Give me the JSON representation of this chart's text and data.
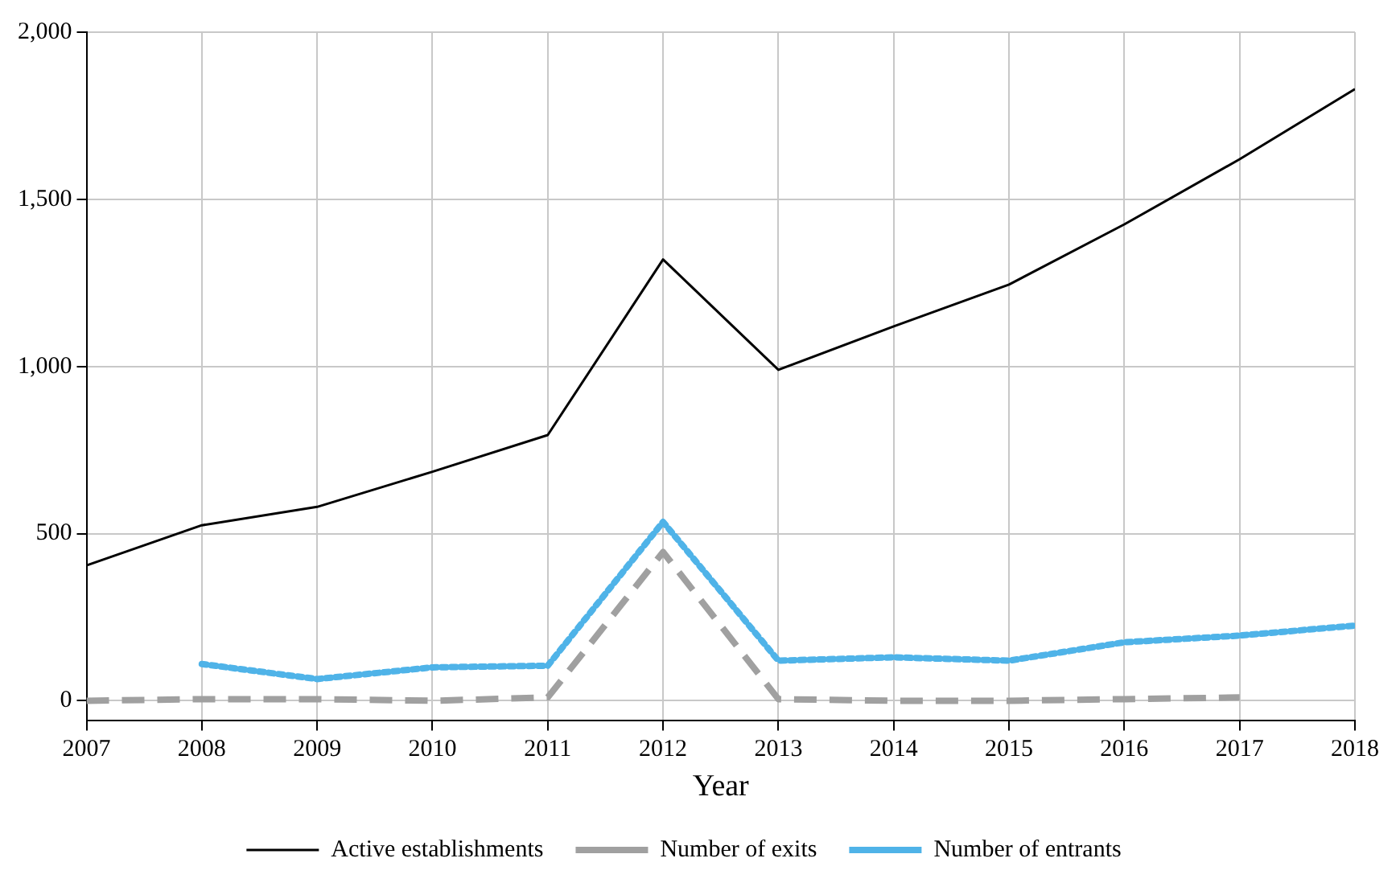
{
  "chart_data": {
    "type": "line",
    "xlabel": "Year",
    "x": [
      2007,
      2008,
      2009,
      2010,
      2011,
      2012,
      2013,
      2014,
      2015,
      2016,
      2017,
      2018
    ],
    "series": [
      {
        "name": "Active establishments",
        "color": "#000000",
        "line_style": "solid",
        "values": [
          405,
          525,
          580,
          685,
          795,
          1320,
          990,
          1120,
          1245,
          1425,
          1620,
          1830
        ]
      },
      {
        "name": "Number of exits",
        "color": "#a0a0a0",
        "line_style": "dashed",
        "values": [
          0,
          5,
          5,
          0,
          10,
          445,
          5,
          0,
          0,
          5,
          10,
          null
        ]
      },
      {
        "name": "Number of entrants",
        "color": "#4fb3e8",
        "line_style": "dotted",
        "values": [
          null,
          110,
          65,
          100,
          105,
          535,
          120,
          130,
          120,
          175,
          195,
          225
        ]
      }
    ],
    "xlim": [
      2007,
      2018
    ],
    "xticks": [
      2007,
      2008,
      2009,
      2010,
      2011,
      2012,
      2013,
      2014,
      2015,
      2016,
      2017,
      2018
    ],
    "ylim": [
      -60,
      2000
    ],
    "yticks": [
      0,
      {
        "value": 500,
        "label": "500"
      },
      {
        "value": 1000,
        "label": "1,000"
      },
      {
        "value": 1500,
        "label": "1,500"
      },
      {
        "value": 2000,
        "label": "2,000"
      }
    ],
    "grid": true,
    "legend": "bottom",
    "marker": "none"
  }
}
